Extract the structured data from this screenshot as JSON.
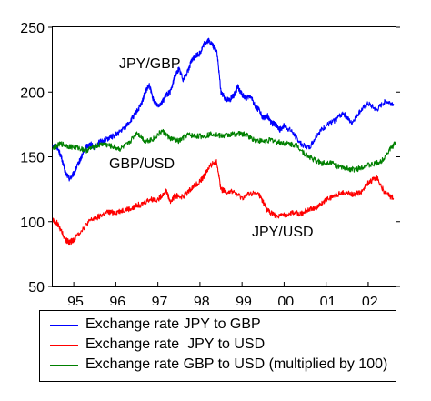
{
  "chart_data": {
    "type": "line",
    "title": "",
    "xlabel": "",
    "ylabel": "",
    "ylim": [
      50,
      250
    ],
    "yticks": [
      50,
      100,
      150,
      200,
      250
    ],
    "xlim": [
      1994.5,
      2002.65
    ],
    "xtick_labels": [
      "95",
      "96",
      "97",
      "98",
      "99",
      "00",
      "01",
      "02"
    ],
    "grid": false,
    "legend_position": "bottom",
    "series": [
      {
        "name": "Exchange rate JPY to GBP",
        "label": "JPY/GBP",
        "color": "#0000ff",
        "x": [
          1994.5,
          1994.6,
          1994.7,
          1994.8,
          1994.9,
          1995.0,
          1995.1,
          1995.2,
          1995.3,
          1995.4,
          1995.5,
          1995.6,
          1995.8,
          1996.0,
          1996.2,
          1996.4,
          1996.5,
          1996.6,
          1996.7,
          1996.8,
          1996.9,
          1997.0,
          1997.1,
          1997.2,
          1997.3,
          1997.4,
          1997.5,
          1997.6,
          1997.7,
          1997.8,
          1997.9,
          1998.0,
          1998.1,
          1998.2,
          1998.3,
          1998.4,
          1998.5,
          1998.6,
          1998.7,
          1998.8,
          1998.9,
          1999.0,
          1999.1,
          1999.2,
          1999.3,
          1999.4,
          1999.5,
          1999.6,
          1999.7,
          1999.8,
          1999.9,
          2000.0,
          2000.2,
          2000.4,
          2000.6,
          2000.8,
          2001.0,
          2001.2,
          2001.4,
          2001.6,
          2001.8,
          2002.0,
          2002.2,
          2002.4,
          2002.6
        ],
        "y": [
          159,
          158,
          150,
          138,
          133,
          137,
          144,
          151,
          158,
          160,
          157,
          161,
          164,
          167,
          172,
          180,
          185,
          190,
          200,
          205,
          193,
          190,
          192,
          198,
          200,
          212,
          218,
          210,
          215,
          224,
          228,
          230,
          237,
          240,
          236,
          232,
          200,
          195,
          194,
          197,
          204,
          198,
          195,
          197,
          190,
          186,
          180,
          182,
          176,
          175,
          171,
          174,
          169,
          160,
          157,
          168,
          174,
          178,
          184,
          176,
          185,
          191,
          186,
          193,
          191
        ]
      },
      {
        "name": "Exchange rate  JPY to USD",
        "label": "JPY/USD",
        "color": "#ff0000",
        "x": [
          1994.5,
          1994.6,
          1994.7,
          1994.8,
          1994.9,
          1995.0,
          1995.2,
          1995.4,
          1995.6,
          1995.8,
          1996.0,
          1996.2,
          1996.4,
          1996.5,
          1996.6,
          1996.8,
          1997.0,
          1997.2,
          1997.3,
          1997.4,
          1997.6,
          1997.8,
          1998.0,
          1998.1,
          1998.2,
          1998.3,
          1998.4,
          1998.5,
          1998.6,
          1998.8,
          1999.0,
          1999.2,
          1999.4,
          1999.5,
          1999.6,
          1999.8,
          2000.0,
          2000.2,
          2000.4,
          2000.6,
          2000.8,
          2001.0,
          2001.2,
          2001.4,
          2001.6,
          2001.8,
          2002.0,
          2002.2,
          2002.4,
          2002.6
        ],
        "y": [
          101,
          99,
          93,
          86,
          84,
          86,
          94,
          101,
          104,
          107,
          107,
          109,
          110,
          113,
          113,
          117,
          117,
          124,
          115,
          120,
          119,
          126,
          131,
          135,
          141,
          145,
          146,
          125,
          123,
          123,
          118,
          122,
          121,
          115,
          109,
          104,
          105,
          107,
          106,
          110,
          111,
          117,
          120,
          123,
          121,
          122,
          130,
          134,
          122,
          118
        ]
      },
      {
        "name": "Exchange rate GBP to USD (multiplied by 100)",
        "label": "GBP/USD",
        "color": "#008000",
        "x": [
          1994.5,
          1994.7,
          1994.9,
          1995.1,
          1995.3,
          1995.5,
          1995.7,
          1995.9,
          1996.1,
          1996.3,
          1996.5,
          1996.7,
          1996.9,
          1997.1,
          1997.3,
          1997.5,
          1997.7,
          1997.9,
          1998.1,
          1998.3,
          1998.5,
          1998.7,
          1998.9,
          1999.1,
          1999.3,
          1999.5,
          1999.7,
          1999.9,
          2000.1,
          2000.3,
          2000.5,
          2000.7,
          2000.9,
          2001.1,
          2001.3,
          2001.5,
          2001.7,
          2001.9,
          2002.1,
          2002.3,
          2002.5,
          2002.65
        ],
        "y": [
          157,
          160,
          158,
          157,
          155,
          158,
          160,
          158,
          156,
          160,
          169,
          162,
          164,
          170,
          164,
          162,
          167,
          166,
          166,
          168,
          166,
          167,
          168,
          167,
          163,
          162,
          163,
          161,
          160,
          159,
          152,
          148,
          145,
          146,
          142,
          141,
          140,
          143,
          144,
          146,
          155,
          161
        ]
      }
    ]
  },
  "legend": {
    "items": [
      {
        "label": "Exchange rate JPY to GBP",
        "color": "#0000ff"
      },
      {
        "label": "Exchange rate  JPY to USD",
        "color": "#ff0000"
      },
      {
        "label": "Exchange rate GBP to USD (multiplied by 100)",
        "color": "#008000"
      }
    ]
  }
}
